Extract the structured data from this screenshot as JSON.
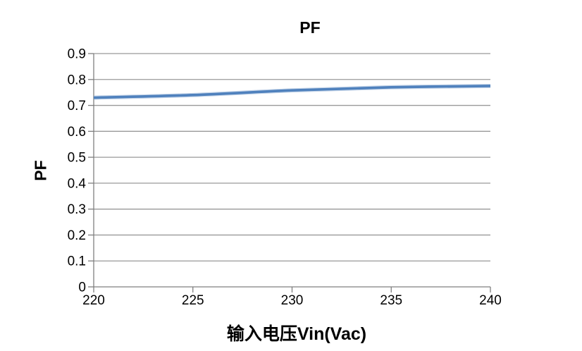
{
  "chart": {
    "title": "PF",
    "x_axis_title": "输入电压Vin(Vac)",
    "y_axis_title": "PF"
  },
  "chart_data": {
    "type": "line",
    "title": "PF",
    "xlabel": "输入电压Vin(Vac)",
    "ylabel": "PF",
    "x": [
      220,
      225,
      230,
      235,
      240
    ],
    "series": [
      {
        "name": "PF",
        "values": [
          0.73,
          0.74,
          0.758,
          0.77,
          0.775
        ],
        "color": "#4F81BD"
      }
    ],
    "xlim": [
      220,
      240
    ],
    "ylim": [
      0,
      0.9
    ],
    "x_ticks": [
      220,
      225,
      230,
      235,
      240
    ],
    "x_tick_labels": [
      "220",
      "225",
      "230",
      "235",
      "240"
    ],
    "y_ticks": [
      0,
      0.1,
      0.2,
      0.3,
      0.4,
      0.5,
      0.6,
      0.7,
      0.8,
      0.9
    ],
    "y_tick_labels": [
      "0",
      "0.1",
      "0.2",
      "0.3",
      "0.4",
      "0.5",
      "0.6",
      "0.7",
      "0.8",
      "0.9"
    ],
    "grid": "horizontal",
    "legend": "none",
    "smooth": true,
    "colors": {
      "series": "#4F81BD",
      "series_halo": "#95B3D7",
      "gridline": "#999999",
      "axis": "#7f7f7f",
      "text": "#000000",
      "background": "#FFFFFF"
    }
  }
}
